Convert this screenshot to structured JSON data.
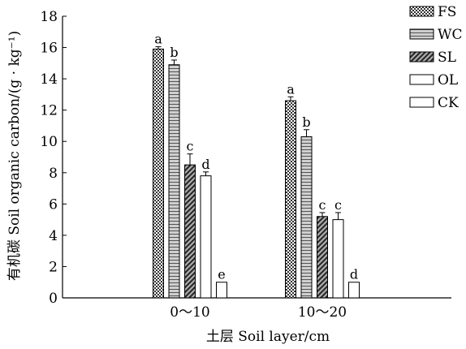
{
  "chart_data": {
    "type": "bar",
    "title": "",
    "xlabel": "土层 Soil layer/cm",
    "ylabel": "有机碳 Soil organic carbon/(g · kg⁻¹)",
    "ylim": [
      0,
      18
    ],
    "yticks": [
      0,
      2,
      4,
      6,
      8,
      10,
      12,
      14,
      16,
      18
    ],
    "grid": false,
    "legend_position": "top-right",
    "categories": [
      "0～10",
      "10～20"
    ],
    "series": [
      {
        "name": "FS",
        "pattern": "checker",
        "values": [
          15.9,
          12.6
        ],
        "errors": [
          0.15,
          0.25
        ],
        "letters": [
          "a",
          "a"
        ]
      },
      {
        "name": "WC",
        "pattern": "hlines",
        "values": [
          14.9,
          10.3
        ],
        "errors": [
          0.3,
          0.45
        ],
        "letters": [
          "b",
          "b"
        ]
      },
      {
        "name": "SL",
        "pattern": "diagonal",
        "values": [
          8.5,
          5.2
        ],
        "errors": [
          0.7,
          0.25
        ],
        "letters": [
          "c",
          "c"
        ]
      },
      {
        "name": "OL",
        "pattern": "white",
        "values": [
          7.8,
          5.0
        ],
        "errors": [
          0.25,
          0.45
        ],
        "letters": [
          "d",
          "c"
        ]
      },
      {
        "name": "CK",
        "pattern": "white",
        "values": [
          1.0,
          1.0
        ],
        "errors": [
          0,
          0
        ],
        "letters": [
          "e",
          "d"
        ]
      }
    ]
  }
}
